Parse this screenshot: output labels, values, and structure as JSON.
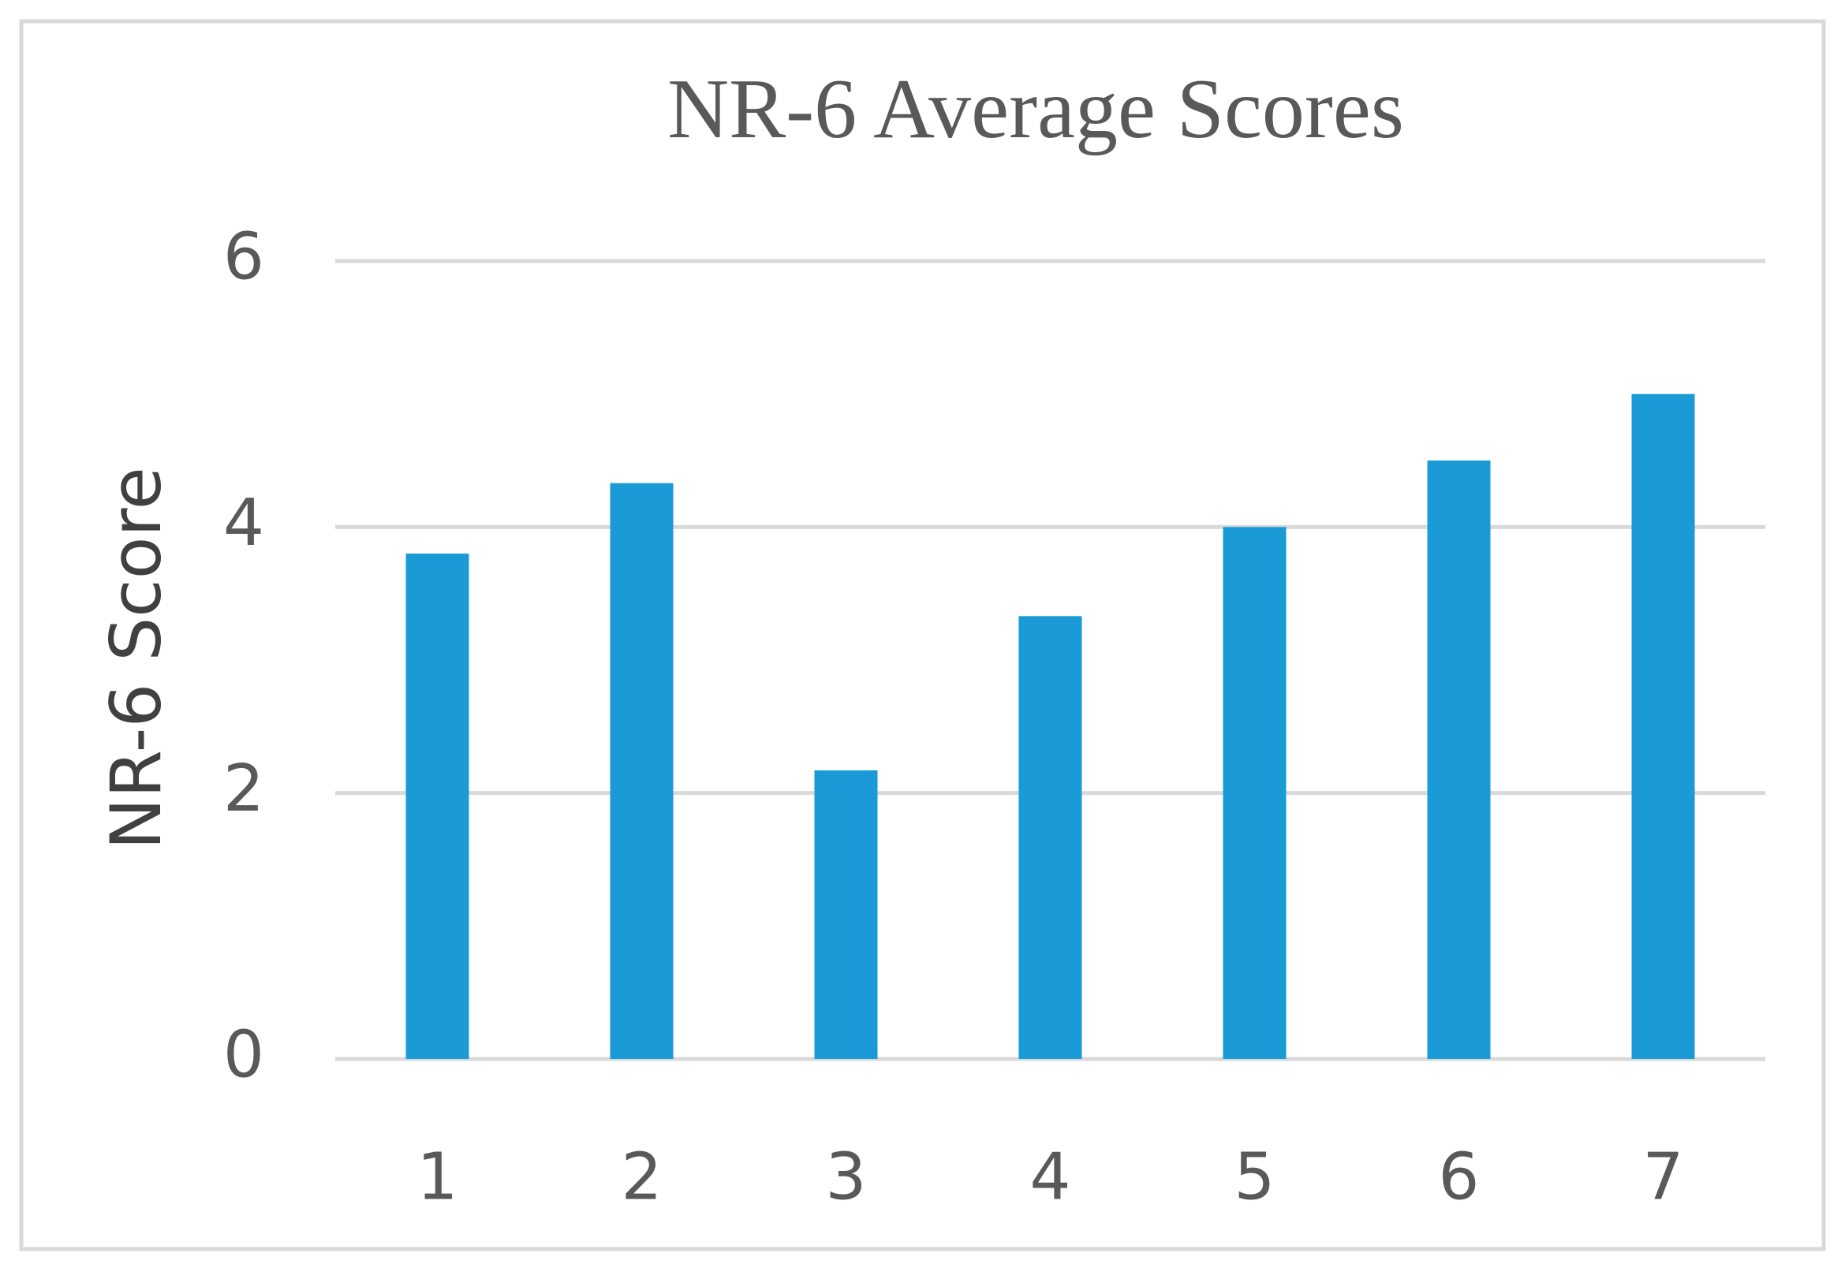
{
  "chart_data": {
    "type": "bar",
    "title": "NR-6 Average Scores",
    "y_label": "NR-6 Score",
    "categories": [
      "1",
      "2",
      "3",
      "4",
      "5",
      "6",
      "7"
    ],
    "values": [
      3.8,
      4.33,
      2.17,
      3.33,
      4.0,
      4.5,
      5.0
    ],
    "color": "#1a9ad6",
    "ylim": [
      0,
      6
    ],
    "yticks": [
      0,
      2,
      4,
      6
    ],
    "grid": true
  }
}
